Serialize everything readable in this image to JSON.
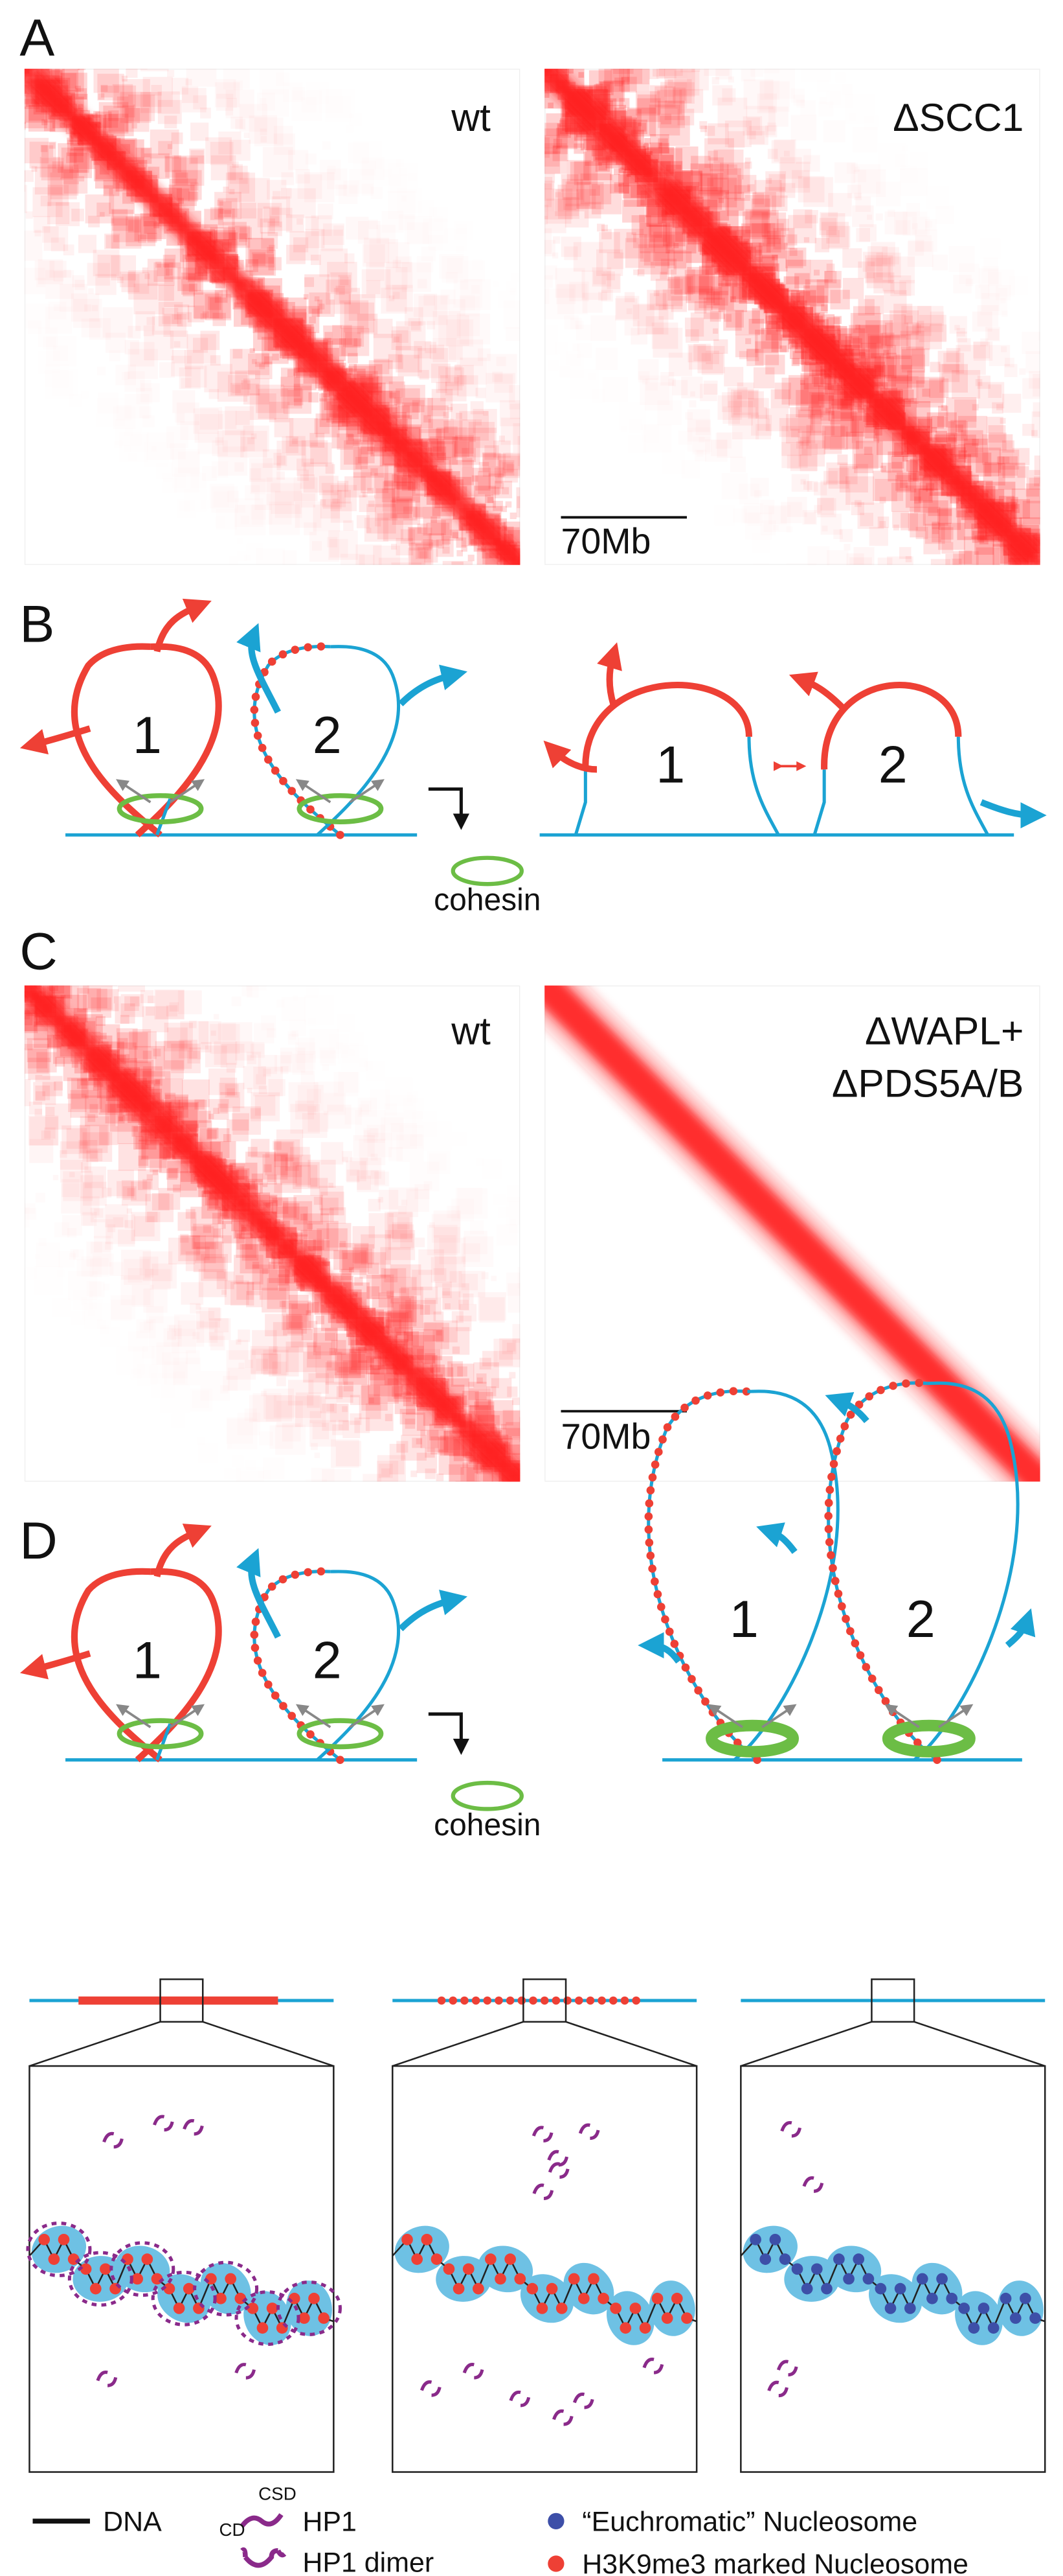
{
  "panels": {
    "A": {
      "label": "A",
      "left_label": "wt",
      "right_label": "ΔSCC1",
      "scale_bar": "70Mb"
    },
    "B": {
      "label": "B",
      "loop_labels": [
        "1",
        "2",
        "1",
        "2"
      ],
      "cohesin": "cohesin"
    },
    "C": {
      "label": "C",
      "left_label": "wt",
      "right_label_lines": [
        "ΔWAPL+",
        "ΔPDS5A/B"
      ],
      "scale_bar": "70Mb"
    },
    "D": {
      "label": "D",
      "loop_labels": [
        "1",
        "2",
        "1",
        "2"
      ],
      "cohesin": "cohesin"
    }
  },
  "legend": {
    "dna": "DNA",
    "csd": "CSD",
    "cd": "CD",
    "hp1": "HP1",
    "hp1_dimer": "HP1 dimer",
    "euchromatic": "“Euchromatic” Nucleosome",
    "h3k9me3": "H3K9me3 marked Nucleosome"
  }
}
